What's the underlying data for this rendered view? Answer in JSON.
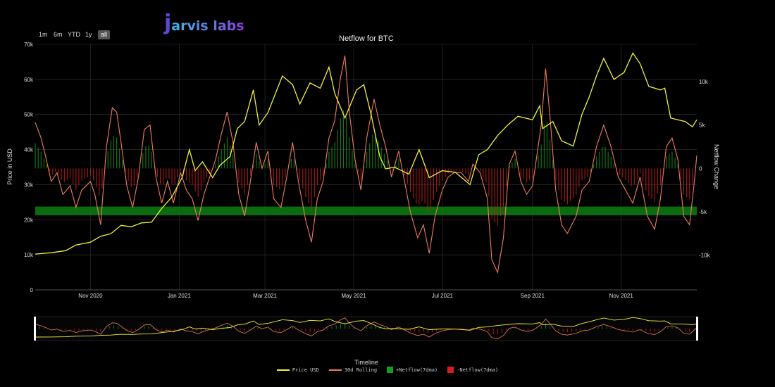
{
  "logo": {
    "mark": "j",
    "text": "arvis labs"
  },
  "range_buttons": [
    "1m",
    "6m",
    "YTD",
    "1y",
    "all"
  ],
  "active_range": "all",
  "colors": {
    "price": "#f2f23a",
    "rolling": "#ef7d5e",
    "pos": "#14a014",
    "neg": "#d51f1f",
    "band": "#0c7f10",
    "grid": "#333333"
  },
  "chart_data": {
    "type": "combo",
    "title": "Netflow for BTC",
    "ylabel_left": "Price in USD",
    "ylabel_right": "Netflow Change",
    "xlabel": "Timeline",
    "left_ticks": [
      "0",
      "10k",
      "20k",
      "30k",
      "40k",
      "50k",
      "60k",
      "70k"
    ],
    "left_ylim": [
      0,
      70000
    ],
    "right_ticks": [
      {
        "v": 10000,
        "label": "10k"
      },
      {
        "v": 5000,
        "label": "5k"
      },
      {
        "v": 0,
        "label": "0"
      },
      {
        "v": -5000,
        "label": "-5k"
      },
      {
        "v": -10000,
        "label": "-10k"
      }
    ],
    "right_ylim": [
      -14000,
      14300
    ],
    "x_range": [
      "2020-09-24",
      "2021-12-23"
    ],
    "x_ticks": [
      {
        "date": "2020-11-01",
        "label": "Nov 2020"
      },
      {
        "date": "2021-01-01",
        "label": "Jan 2021"
      },
      {
        "date": "2021-03-01",
        "label": "Mar 2021"
      },
      {
        "date": "2021-05-01",
        "label": "May 2021"
      },
      {
        "date": "2021-07-01",
        "label": "Jul 2021"
      },
      {
        "date": "2021-09-01",
        "label": "Sep 2021"
      },
      {
        "date": "2021-11-01",
        "label": "Nov 2021"
      }
    ],
    "band_range": [
      -5400,
      -4400
    ],
    "series": [
      {
        "name": "Price USD",
        "axis": "left",
        "points": [
          [
            "2020-09-24",
            10200
          ],
          [
            "2020-10-05",
            10600
          ],
          [
            "2020-10-15",
            11200
          ],
          [
            "2020-10-22",
            12800
          ],
          [
            "2020-11-01",
            13600
          ],
          [
            "2020-11-08",
            15300
          ],
          [
            "2020-11-15",
            16000
          ],
          [
            "2020-11-22",
            18400
          ],
          [
            "2020-11-29",
            18000
          ],
          [
            "2020-12-06",
            19100
          ],
          [
            "2020-12-13",
            19300
          ],
          [
            "2020-12-20",
            23200
          ],
          [
            "2020-12-27",
            26500
          ],
          [
            "2021-01-03",
            32000
          ],
          [
            "2021-01-08",
            40000
          ],
          [
            "2021-01-12",
            34000
          ],
          [
            "2021-01-17",
            36500
          ],
          [
            "2021-01-24",
            32000
          ],
          [
            "2021-01-29",
            35500
          ],
          [
            "2021-02-05",
            38000
          ],
          [
            "2021-02-10",
            46000
          ],
          [
            "2021-02-15",
            48000
          ],
          [
            "2021-02-21",
            57000
          ],
          [
            "2021-02-25",
            47000
          ],
          [
            "2021-03-03",
            50500
          ],
          [
            "2021-03-13",
            61000
          ],
          [
            "2021-03-20",
            58500
          ],
          [
            "2021-03-25",
            53000
          ],
          [
            "2021-04-01",
            59000
          ],
          [
            "2021-04-08",
            57500
          ],
          [
            "2021-04-14",
            63500
          ],
          [
            "2021-04-18",
            56000
          ],
          [
            "2021-04-25",
            49000
          ],
          [
            "2021-05-03",
            57000
          ],
          [
            "2021-05-08",
            58500
          ],
          [
            "2021-05-13",
            50000
          ],
          [
            "2021-05-19",
            38000
          ],
          [
            "2021-05-23",
            34500
          ],
          [
            "2021-05-29",
            35000
          ],
          [
            "2021-06-08",
            33000
          ],
          [
            "2021-06-15",
            40000
          ],
          [
            "2021-06-22",
            32000
          ],
          [
            "2021-07-01",
            34000
          ],
          [
            "2021-07-10",
            33500
          ],
          [
            "2021-07-20",
            30000
          ],
          [
            "2021-07-26",
            38500
          ],
          [
            "2021-08-01",
            40000
          ],
          [
            "2021-08-08",
            44000
          ],
          [
            "2021-08-15",
            47000
          ],
          [
            "2021-08-22",
            49500
          ],
          [
            "2021-09-01",
            48500
          ],
          [
            "2021-09-06",
            52500
          ],
          [
            "2021-09-08",
            46000
          ],
          [
            "2021-09-15",
            48000
          ],
          [
            "2021-09-21",
            42500
          ],
          [
            "2021-09-29",
            41000
          ],
          [
            "2021-10-05",
            50000
          ],
          [
            "2021-10-10",
            55000
          ],
          [
            "2021-10-15",
            61000
          ],
          [
            "2021-10-20",
            66000
          ],
          [
            "2021-10-27",
            60000
          ],
          [
            "2021-11-03",
            62000
          ],
          [
            "2021-11-09",
            67500
          ],
          [
            "2021-11-14",
            64500
          ],
          [
            "2021-11-20",
            58000
          ],
          [
            "2021-11-28",
            57000
          ],
          [
            "2021-12-01",
            57500
          ],
          [
            "2021-12-05",
            49000
          ],
          [
            "2021-12-10",
            48500
          ],
          [
            "2021-12-15",
            48000
          ],
          [
            "2021-12-20",
            46500
          ],
          [
            "2021-12-23",
            48500
          ]
        ]
      },
      {
        "name": "30d Rolling",
        "axis": "right",
        "points": [
          [
            "2020-09-24",
            5300
          ],
          [
            "2020-09-28",
            3500
          ],
          [
            "2020-10-01",
            1500
          ],
          [
            "2020-10-05",
            -1500
          ],
          [
            "2020-10-09",
            -500
          ],
          [
            "2020-10-13",
            -3000
          ],
          [
            "2020-10-18",
            -2000
          ],
          [
            "2020-10-22",
            -4500
          ],
          [
            "2020-10-26",
            -2500
          ],
          [
            "2020-11-01",
            -1500
          ],
          [
            "2020-11-04",
            -3000
          ],
          [
            "2020-11-08",
            -6500
          ],
          [
            "2020-11-12",
            2500
          ],
          [
            "2020-11-16",
            7000
          ],
          [
            "2020-11-19",
            6500
          ],
          [
            "2020-11-22",
            3000
          ],
          [
            "2020-11-26",
            -2000
          ],
          [
            "2020-11-30",
            -4500
          ],
          [
            "2020-12-04",
            -1000
          ],
          [
            "2020-12-08",
            4500
          ],
          [
            "2020-12-12",
            5000
          ],
          [
            "2020-12-16",
            -1000
          ],
          [
            "2020-12-20",
            -4000
          ],
          [
            "2020-12-24",
            -1500
          ],
          [
            "2020-12-28",
            -4000
          ],
          [
            "2021-01-02",
            -500
          ],
          [
            "2021-01-06",
            -2500
          ],
          [
            "2021-01-10",
            -3500
          ],
          [
            "2021-01-14",
            -6000
          ],
          [
            "2021-01-18",
            -3000
          ],
          [
            "2021-01-22",
            -1000
          ],
          [
            "2021-01-26",
            1000
          ],
          [
            "2021-01-30",
            4000
          ],
          [
            "2021-02-03",
            6500
          ],
          [
            "2021-02-07",
            3000
          ],
          [
            "2021-02-11",
            -3000
          ],
          [
            "2021-02-15",
            -5500
          ],
          [
            "2021-02-19",
            -1500
          ],
          [
            "2021-02-23",
            3000
          ],
          [
            "2021-02-27",
            0
          ],
          [
            "2021-03-03",
            2000
          ],
          [
            "2021-03-07",
            -3500
          ],
          [
            "2021-03-12",
            -4500
          ],
          [
            "2021-03-16",
            -1000
          ],
          [
            "2021-03-20",
            3000
          ],
          [
            "2021-03-24",
            -1500
          ],
          [
            "2021-03-29",
            -6000
          ],
          [
            "2021-04-02",
            -8500
          ],
          [
            "2021-04-06",
            -3500
          ],
          [
            "2021-04-10",
            -1500
          ],
          [
            "2021-04-14",
            3500
          ],
          [
            "2021-04-18",
            5500
          ],
          [
            "2021-04-22",
            10500
          ],
          [
            "2021-04-25",
            13000
          ],
          [
            "2021-04-28",
            6500
          ],
          [
            "2021-05-02",
            1000
          ],
          [
            "2021-05-06",
            -2500
          ],
          [
            "2021-05-10",
            3500
          ],
          [
            "2021-05-15",
            8000
          ],
          [
            "2021-05-19",
            5000
          ],
          [
            "2021-05-23",
            2500
          ],
          [
            "2021-05-27",
            -1000
          ],
          [
            "2021-06-01",
            2000
          ],
          [
            "2021-06-05",
            -1500
          ],
          [
            "2021-06-09",
            -5000
          ],
          [
            "2021-06-14",
            -8000
          ],
          [
            "2021-06-18",
            -6500
          ],
          [
            "2021-06-22",
            -9800
          ],
          [
            "2021-06-26",
            -5500
          ],
          [
            "2021-07-01",
            -2500
          ],
          [
            "2021-07-05",
            -1000
          ],
          [
            "2021-07-09",
            -500
          ],
          [
            "2021-07-14",
            -500
          ],
          [
            "2021-07-19",
            -1500
          ],
          [
            "2021-07-22",
            500
          ],
          [
            "2021-07-27",
            -500
          ],
          [
            "2021-08-01",
            -3500
          ],
          [
            "2021-08-04",
            -10500
          ],
          [
            "2021-08-08",
            -12000
          ],
          [
            "2021-08-12",
            -8000
          ],
          [
            "2021-08-16",
            500
          ],
          [
            "2021-08-20",
            2000
          ],
          [
            "2021-08-24",
            -1500
          ],
          [
            "2021-08-28",
            -3000
          ],
          [
            "2021-09-01",
            -2000
          ],
          [
            "2021-09-04",
            1500
          ],
          [
            "2021-09-07",
            5000
          ],
          [
            "2021-09-10",
            11500
          ],
          [
            "2021-09-13",
            6000
          ],
          [
            "2021-09-17",
            -2500
          ],
          [
            "2021-09-21",
            -6500
          ],
          [
            "2021-09-25",
            -7500
          ],
          [
            "2021-10-01",
            -5500
          ],
          [
            "2021-10-05",
            -2500
          ],
          [
            "2021-10-10",
            -1500
          ],
          [
            "2021-10-15",
            2500
          ],
          [
            "2021-10-20",
            5000
          ],
          [
            "2021-10-25",
            2500
          ],
          [
            "2021-10-30",
            -1000
          ],
          [
            "2021-11-04",
            -2500
          ],
          [
            "2021-11-09",
            -4000
          ],
          [
            "2021-11-14",
            -1000
          ],
          [
            "2021-11-19",
            -5500
          ],
          [
            "2021-11-24",
            -7000
          ],
          [
            "2021-11-28",
            -3500
          ],
          [
            "2021-12-02",
            2500
          ],
          [
            "2021-12-06",
            3500
          ],
          [
            "2021-12-10",
            1000
          ],
          [
            "2021-12-14",
            -5500
          ],
          [
            "2021-12-18",
            -6500
          ],
          [
            "2021-12-21",
            -2000
          ],
          [
            "2021-12-23",
            1500
          ]
        ]
      },
      {
        "name": "+Netflow(7dma)",
        "type": "bar",
        "axis": "right",
        "color": "pos"
      },
      {
        "name": "-Netflow(7dma)",
        "type": "bar",
        "axis": "right",
        "color": "neg"
      }
    ]
  },
  "legend": [
    "Price USD",
    "30d Rolling",
    "+Netflow(7dma)",
    "-Netflow(7dma)"
  ]
}
